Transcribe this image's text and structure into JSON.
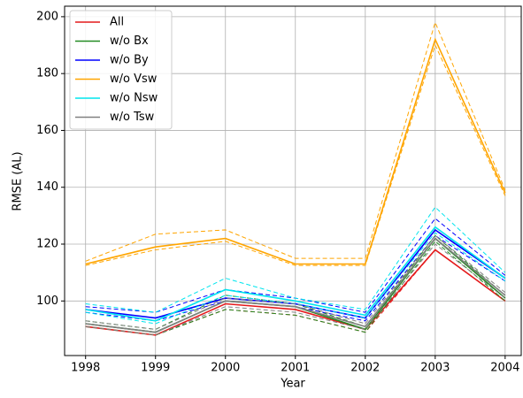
{
  "chart_data": {
    "type": "line",
    "x_label": "Year",
    "y_label": "RMSE (AL)",
    "x": [
      1998,
      1999,
      2000,
      2001,
      2002,
      2003,
      2004
    ],
    "xlim": [
      1997.7,
      2004.23
    ],
    "xticks": [
      1998,
      1999,
      2000,
      2001,
      2002,
      2003,
      2004
    ],
    "ylim": [
      80.8,
      203.7
    ],
    "yticks": [
      100,
      120,
      140,
      160,
      180,
      200
    ],
    "grid": true,
    "legend": "upper left",
    "series": [
      {
        "name": "All",
        "color": "#e41a1c",
        "values": [
          91,
          88,
          99,
          97,
          90,
          118,
          100
        ],
        "upper": [
          92,
          89,
          100,
          98,
          91,
          122,
          101
        ],
        "lower": [
          91,
          88,
          97,
          95,
          89,
          118,
          100
        ]
      },
      {
        "name": "w/o Bx",
        "color": "#228b22",
        "values": [
          92,
          89,
          100,
          98,
          90,
          122,
          101
        ],
        "upper": [
          93,
          90,
          102,
          99,
          91,
          123,
          102
        ],
        "lower": [
          91,
          88,
          97,
          95,
          89,
          121,
          100
        ]
      },
      {
        "name": "w/o By",
        "color": "#0000ff",
        "values": [
          97,
          94,
          101,
          99,
          94,
          125,
          108
        ],
        "upper": [
          98,
          96,
          104,
          101,
          96,
          129,
          109
        ],
        "lower": [
          96,
          93,
          100,
          98,
          93,
          123,
          107
        ]
      },
      {
        "name": "w/o Vsw",
        "color": "#ffa500",
        "values": [
          113,
          119,
          122,
          113,
          113,
          192,
          138
        ],
        "upper": [
          114,
          123.5,
          125,
          115,
          115,
          198,
          139
        ],
        "lower": [
          112.5,
          118,
          121,
          112.5,
          112.5,
          190,
          137
        ]
      },
      {
        "name": "w/o Nsw",
        "color": "#00e5ee",
        "values": [
          97,
          93,
          104,
          100,
          95,
          126,
          108
        ],
        "upper": [
          99,
          96,
          108,
          101,
          97,
          133,
          110
        ],
        "lower": [
          96,
          92,
          102,
          99,
          94,
          124,
          107
        ]
      },
      {
        "name": "w/o Tsw",
        "color": "#808080",
        "values": [
          92,
          89,
          100,
          98,
          91,
          122,
          102
        ],
        "upper": [
          93,
          90,
          101,
          99,
          92,
          123,
          103
        ],
        "lower": [
          91,
          88,
          98,
          96,
          90,
          120,
          101
        ]
      }
    ]
  }
}
